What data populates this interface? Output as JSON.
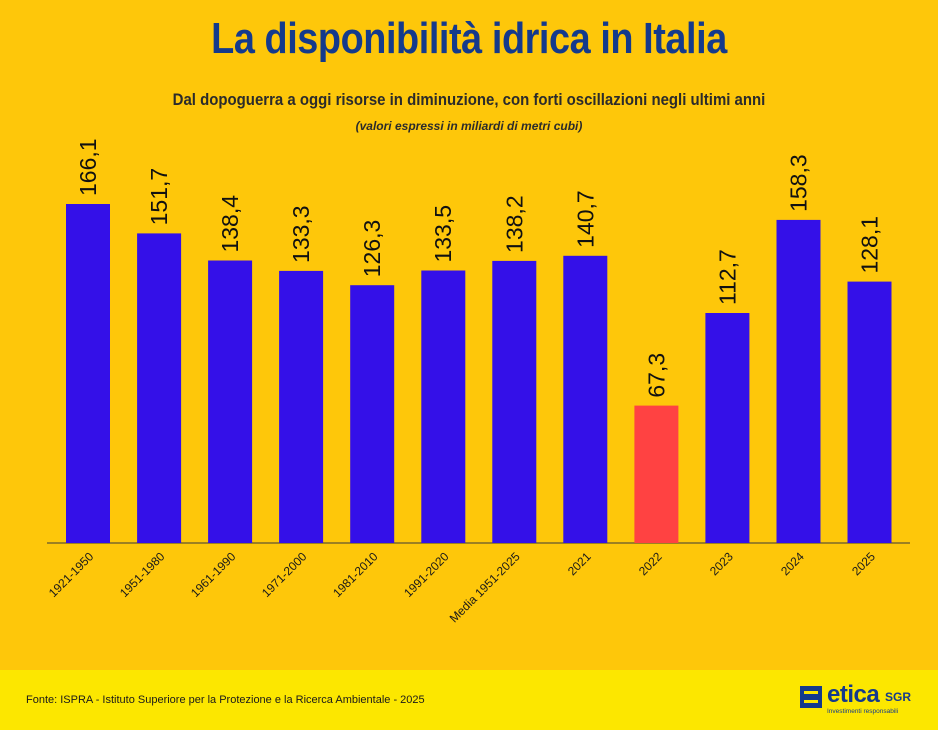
{
  "header": {
    "title": "La disponibilità idrica in Italia",
    "subtitle": "Dal dopoguerra a oggi risorse in diminuzione, con forti oscillazioni negli ultimi anni",
    "note": "(valori espressi in miliardi di metri cubi)"
  },
  "chart_data": {
    "type": "bar",
    "categories": [
      "1921-1950",
      "1951-1980",
      "1961-1990",
      "1971-2000",
      "1981-2010",
      "1991-2020",
      "Media 1951-2025",
      "2021",
      "2022",
      "2023",
      "2024",
      "2025"
    ],
    "values": [
      166.1,
      151.7,
      138.4,
      133.3,
      126.3,
      133.5,
      138.2,
      140.7,
      67.3,
      112.7,
      158.3,
      128.1
    ],
    "value_labels": [
      "166,1",
      "151,7",
      "138,4",
      "133,3",
      "126,3",
      "133,5",
      "138,2",
      "140,7",
      "67,3",
      "112,7",
      "158,3",
      "128,1"
    ],
    "highlight_index": 8,
    "bar_color": "#3410E8",
    "highlight_color": "#FF4242",
    "ylim": [
      0,
      166.1
    ],
    "grid": false,
    "legend": "none"
  },
  "footer": {
    "source": "Fonte: ISPRA - Istituto Superiore per la Protezione e la Ricerca Ambientale - 2025",
    "logo_word": "etica",
    "logo_suffix": "SGR",
    "logo_tagline": "Investimenti responsabili"
  }
}
